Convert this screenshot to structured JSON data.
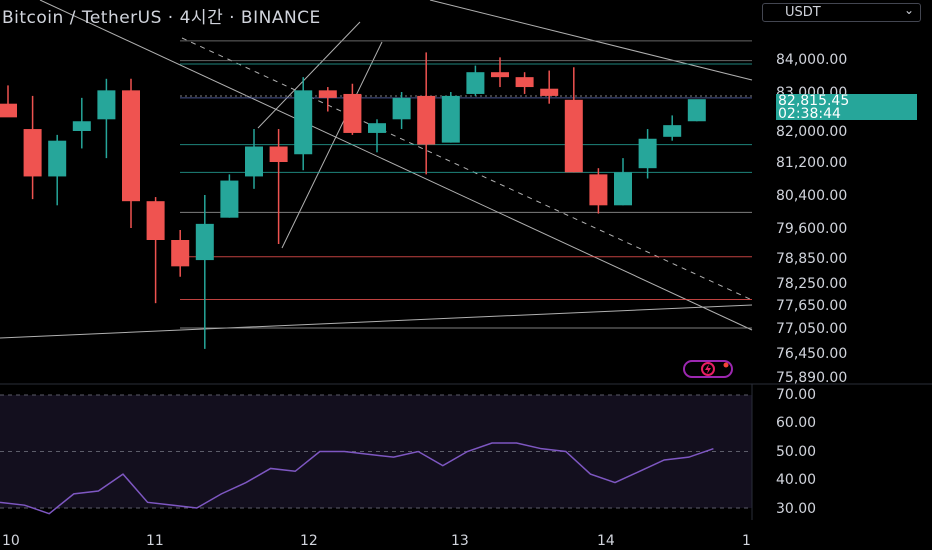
{
  "header": {
    "title": "Bitcoin / TetherUS · 4시간 · BINANCE",
    "currency_button": "USDT",
    "last_price": "82,815.45",
    "countdown": "02:38:44"
  },
  "colors": {
    "up": "#26a69a",
    "down": "#ef5350",
    "rsi": "#7e57c2",
    "background": "#000000"
  },
  "icons": {
    "currency_dropdown": "chevron-down-icon",
    "brand": "lightning-logo-icon"
  },
  "chart_data": [
    {
      "type": "candlestick",
      "title": "Bitcoin / TetherUS · 4시간 · BINANCE",
      "y_ticks": [
        "84,000.00",
        "83,000.00",
        "82,000.00",
        "81,200.00",
        "80,400.00",
        "79,600.00",
        "78,850.00",
        "78,250.00",
        "77,650.00",
        "77,050.00",
        "76,450.00",
        "75,890.00"
      ],
      "x_ticks": [
        "10",
        "11",
        "12",
        "13",
        "14",
        "1"
      ],
      "ylim": [
        75890,
        84600
      ],
      "candles": [
        {
          "o": 82700,
          "h": 83200,
          "l": 82400,
          "c": 82350
        },
        {
          "o": 82050,
          "h": 82900,
          "l": 80300,
          "c": 80850
        },
        {
          "o": 80850,
          "h": 81900,
          "l": 80150,
          "c": 81750
        },
        {
          "o": 82000,
          "h": 82850,
          "l": 81550,
          "c": 82250
        },
        {
          "o": 82300,
          "h": 83400,
          "l": 81300,
          "c": 83050
        },
        {
          "o": 83050,
          "h": 83400,
          "l": 79600,
          "c": 80250
        },
        {
          "o": 80250,
          "h": 80350,
          "l": 77700,
          "c": 79300
        },
        {
          "o": 79300,
          "h": 79550,
          "l": 78400,
          "c": 78650
        },
        {
          "o": 78800,
          "h": 80400,
          "l": 76550,
          "c": 79700
        },
        {
          "o": 79850,
          "h": 80900,
          "l": 79850,
          "c": 80750
        },
        {
          "o": 80850,
          "h": 82050,
          "l": 80550,
          "c": 81600
        },
        {
          "o": 81600,
          "h": 82050,
          "l": 79200,
          "c": 81200
        },
        {
          "o": 81400,
          "h": 83450,
          "l": 81000,
          "c": 83050
        },
        {
          "o": 83050,
          "h": 83150,
          "l": 82500,
          "c": 82850
        },
        {
          "o": 82950,
          "h": 83250,
          "l": 81900,
          "c": 81950
        },
        {
          "o": 81950,
          "h": 82300,
          "l": 81450,
          "c": 82200
        },
        {
          "o": 82300,
          "h": 83000,
          "l": 82050,
          "c": 82850
        },
        {
          "o": 82900,
          "h": 84200,
          "l": 80900,
          "c": 81650
        },
        {
          "o": 81700,
          "h": 83000,
          "l": 81700,
          "c": 82900
        },
        {
          "o": 82950,
          "h": 83800,
          "l": 82900,
          "c": 83600
        },
        {
          "o": 83600,
          "h": 84050,
          "l": 83150,
          "c": 83450
        },
        {
          "o": 83450,
          "h": 83600,
          "l": 82950,
          "c": 83150
        },
        {
          "o": 83100,
          "h": 83650,
          "l": 82700,
          "c": 82900
        },
        {
          "o": 82800,
          "h": 83750,
          "l": 80950,
          "c": 80950
        },
        {
          "o": 80900,
          "h": 81050,
          "l": 79950,
          "c": 80150
        },
        {
          "o": 80150,
          "h": 81300,
          "l": 80150,
          "c": 80950
        },
        {
          "o": 81050,
          "h": 82050,
          "l": 80800,
          "c": 81800
        },
        {
          "o": 81850,
          "h": 82400,
          "l": 81750,
          "c": 82150
        },
        {
          "o": 82250,
          "h": 82800,
          "l": 82250,
          "c": 82815.45
        }
      ],
      "horizontal_levels": [
        {
          "value": 84550,
          "color": "#808080"
        },
        {
          "value": 83950,
          "color": "#808080"
        },
        {
          "value": 83850,
          "color": "#26a69a"
        },
        {
          "value": 82850,
          "color": "#5b6ab5"
        },
        {
          "value": 81650,
          "color": "#26a69a"
        },
        {
          "value": 80950,
          "color": "#26a69a"
        },
        {
          "value": 79980,
          "color": "#9e9e9e"
        },
        {
          "value": 78880,
          "color": "#ef5350"
        },
        {
          "value": 77800,
          "color": "#ef5350"
        },
        {
          "value": 77050,
          "color": "#9e9e9e"
        }
      ],
      "last_price": 82815.45
    },
    {
      "type": "line",
      "title": "",
      "y_ticks": [
        "70.00",
        "60.00",
        "50.00",
        "40.00",
        "30.00"
      ],
      "ylim": [
        28,
        70
      ],
      "bands": [
        30,
        50,
        70
      ],
      "values": [
        32,
        31,
        28,
        35,
        36,
        42,
        32,
        31,
        30,
        35,
        39,
        44,
        43,
        50,
        50,
        49,
        48,
        50,
        45,
        50,
        53,
        53,
        51,
        50,
        42,
        39,
        43,
        47,
        48,
        51
      ]
    }
  ]
}
